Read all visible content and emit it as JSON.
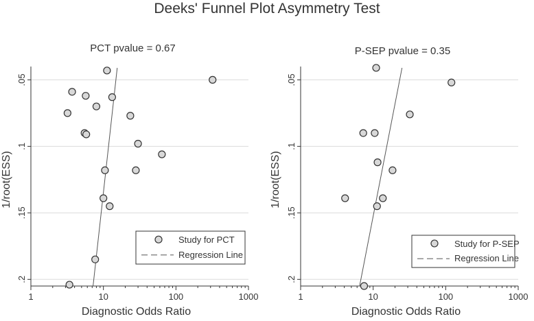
{
  "title": "Deeks' Funnel Plot Asymmetry Test",
  "chart_data": [
    {
      "type": "scatter",
      "subtitle": "PCT pvalue = 0.67",
      "xlabel": "Diagnostic Odds Ratio",
      "ylabel": "1/root(ESS)",
      "x_scale": "log",
      "xlim": [
        1,
        1000
      ],
      "ylim": [
        0.04,
        0.205
      ],
      "y_reversed": true,
      "x_ticks": [
        1,
        10,
        100,
        1000
      ],
      "x_tick_labels": [
        "1",
        "10",
        "100",
        "1000"
      ],
      "y_ticks": [
        0.05,
        0.1,
        0.15,
        0.2
      ],
      "y_tick_labels": [
        ".05",
        ".1",
        ".15",
        ".2"
      ],
      "grid": true,
      "legend_position": "bottom-right",
      "series": [
        {
          "name": "Study for PCT",
          "kind": "points",
          "points": [
            {
              "x": 11.2,
              "y": 0.043
            },
            {
              "x": 3.7,
              "y": 0.059
            },
            {
              "x": 5.7,
              "y": 0.062
            },
            {
              "x": 13.2,
              "y": 0.063
            },
            {
              "x": 8.0,
              "y": 0.07
            },
            {
              "x": 3.2,
              "y": 0.075
            },
            {
              "x": 23.5,
              "y": 0.077
            },
            {
              "x": 5.5,
              "y": 0.09
            },
            {
              "x": 5.8,
              "y": 0.091
            },
            {
              "x": 30.0,
              "y": 0.098
            },
            {
              "x": 64.0,
              "y": 0.106
            },
            {
              "x": 10.5,
              "y": 0.118
            },
            {
              "x": 28.0,
              "y": 0.118
            },
            {
              "x": 10.0,
              "y": 0.139
            },
            {
              "x": 12.2,
              "y": 0.145
            },
            {
              "x": 7.7,
              "y": 0.185
            },
            {
              "x": 3.4,
              "y": 0.204
            },
            {
              "x": 320.0,
              "y": 0.05
            }
          ]
        },
        {
          "name": "Regression  Line",
          "kind": "line",
          "points": [
            {
              "x": 7.2,
              "y": 0.205
            },
            {
              "x": 15.5,
              "y": 0.041
            }
          ]
        }
      ]
    },
    {
      "type": "scatter",
      "subtitle": "P-SEP pvalue = 0.35",
      "xlabel": "Diagnostic Odds Ratio",
      "ylabel": "1/root(ESS)",
      "x_scale": "log",
      "xlim": [
        1,
        1000
      ],
      "ylim": [
        0.04,
        0.205
      ],
      "y_reversed": true,
      "x_ticks": [
        1,
        10,
        100,
        1000
      ],
      "x_tick_labels": [
        "1",
        "10",
        "100",
        "1000"
      ],
      "y_ticks": [
        0.05,
        0.1,
        0.15,
        0.2
      ],
      "y_tick_labels": [
        ".05",
        ".1",
        ".15",
        ".2"
      ],
      "grid": true,
      "legend_position": "bottom-right",
      "series": [
        {
          "name": "Study for P-SEP",
          "kind": "points",
          "points": [
            {
              "x": 11.0,
              "y": 0.041
            },
            {
              "x": 120.0,
              "y": 0.052
            },
            {
              "x": 32.0,
              "y": 0.076
            },
            {
              "x": 7.3,
              "y": 0.09
            },
            {
              "x": 10.5,
              "y": 0.09
            },
            {
              "x": 11.5,
              "y": 0.112
            },
            {
              "x": 18.5,
              "y": 0.118
            },
            {
              "x": 4.1,
              "y": 0.139
            },
            {
              "x": 13.6,
              "y": 0.139
            },
            {
              "x": 11.3,
              "y": 0.145
            },
            {
              "x": 7.5,
              "y": 0.205
            }
          ]
        },
        {
          "name": "Regression Line",
          "kind": "line",
          "points": [
            {
              "x": 6.5,
              "y": 0.205
            },
            {
              "x": 25.0,
              "y": 0.041
            }
          ]
        }
      ]
    }
  ]
}
